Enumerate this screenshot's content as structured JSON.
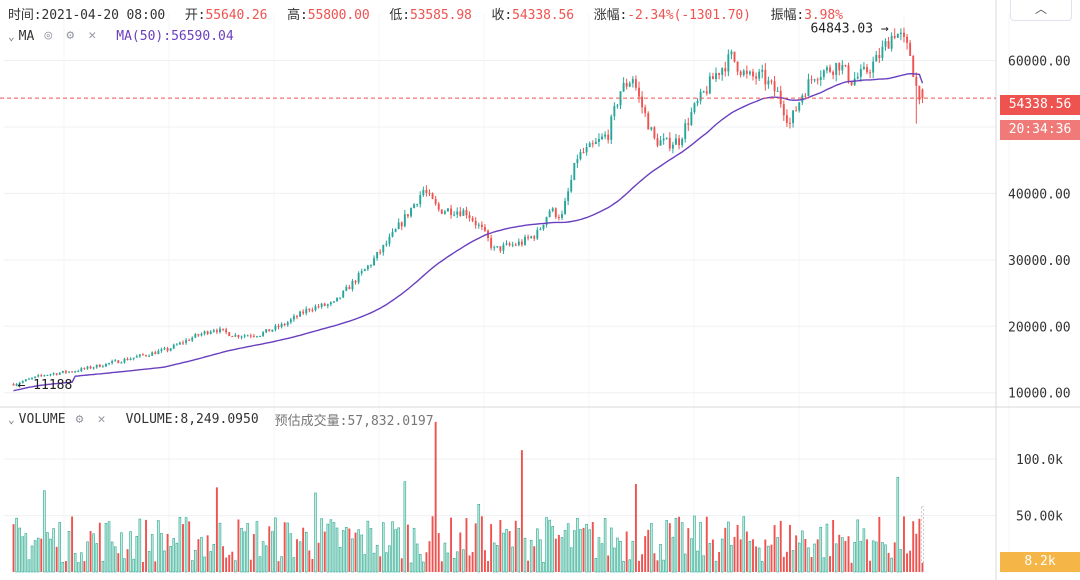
{
  "header": {
    "time_label": "时间:",
    "time_value": "2021-04-20 08:00",
    "open_label": "开:",
    "open_value": "55640.26",
    "high_label": "高:",
    "high_value": "55800.00",
    "low_label": "低:",
    "low_value": "53585.98",
    "close_label": "收:",
    "close_value": "54338.56",
    "change_label": "涨幅:",
    "change_value": "-2.34%(-1301.70)",
    "amplitude_label": "振幅:",
    "amplitude_value": "3.98%"
  },
  "price_legend": {
    "name": "MA",
    "ma_label": "MA(50):56590.04"
  },
  "volume_legend": {
    "name": "VOLUME",
    "value_label": "VOLUME:8,249.0950",
    "estimate_label": "预估成交量:57,832.0197"
  },
  "collapse_icon": "chevron-up-icon",
  "price_tags": {
    "last_price": "54338.56",
    "countdown": "20:34:36",
    "volume": "8.2k"
  },
  "annotations": {
    "high": "64843.03",
    "low": "11188"
  },
  "colors": {
    "up": "#26a69a",
    "up_fill": "#c8ecd5",
    "down": "#ef5350",
    "ma": "#6a3fbf",
    "volume_tag": "#f5b547"
  },
  "chart_data": [
    {
      "type": "candlestick",
      "title": "",
      "ylim": [
        8000,
        67000
      ],
      "yticks": [
        10000,
        20000,
        30000,
        40000,
        50000,
        60000
      ],
      "ytick_labels": [
        "10000.00",
        "20000.00",
        "30000.00",
        "40000.00",
        "50000.00",
        "60000.00"
      ],
      "last_price": 54338.56,
      "high": 64843.03,
      "low": 11188,
      "ma_period": 50,
      "ma_last": 56590.04,
      "grid": true,
      "anchors": [
        [
          0,
          11300
        ],
        [
          10,
          12700
        ],
        [
          20,
          13300
        ],
        [
          30,
          14300
        ],
        [
          40,
          15400
        ],
        [
          50,
          16500
        ],
        [
          58,
          18300
        ],
        [
          65,
          19600
        ],
        [
          72,
          18600
        ],
        [
          80,
          18800
        ],
        [
          88,
          20300
        ],
        [
          96,
          22700
        ],
        [
          104,
          23400
        ],
        [
          110,
          26500
        ],
        [
          116,
          29500
        ],
        [
          122,
          33000
        ],
        [
          128,
          37000
        ],
        [
          133,
          40500
        ],
        [
          138,
          37500
        ],
        [
          143,
          37500
        ],
        [
          147,
          37200
        ],
        [
          152,
          34500
        ],
        [
          156,
          31500
        ],
        [
          160,
          32000
        ],
        [
          165,
          32600
        ],
        [
          170,
          34000
        ],
        [
          174,
          37500
        ],
        [
          178,
          36500
        ],
        [
          183,
          45500
        ],
        [
          188,
          47000
        ],
        [
          193,
          49000
        ],
        [
          197,
          55500
        ],
        [
          201,
          57500
        ],
        [
          203,
          54300
        ],
        [
          208,
          48000
        ],
        [
          212,
          47500
        ],
        [
          216,
          48000
        ],
        [
          220,
          52000
        ],
        [
          224,
          55000
        ],
        [
          228,
          58000
        ],
        [
          233,
          60500
        ],
        [
          238,
          57500
        ],
        [
          243,
          57500
        ],
        [
          248,
          55000
        ],
        [
          252,
          50500
        ],
        [
          256,
          55000
        ],
        [
          260,
          58000
        ],
        [
          264,
          58500
        ],
        [
          268,
          59500
        ],
        [
          272,
          57000
        ],
        [
          276,
          58000
        ],
        [
          280,
          60000
        ],
        [
          284,
          63000
        ],
        [
          286,
          64300
        ],
        [
          288,
          63500
        ],
        [
          291,
          61000
        ],
        [
          293,
          56000
        ],
        [
          295,
          54338.56
        ]
      ],
      "volume": {
        "ylim": [
          0,
          140000
        ],
        "yticks": [
          50000,
          100000
        ],
        "ytick_labels": [
          "50.00k",
          "100.0k"
        ],
        "last_value": 8249.095,
        "estimated": 57832.0197,
        "spikes": [
          [
            10,
            72000
          ],
          [
            66,
            75000
          ],
          [
            98,
            70000
          ],
          [
            127,
            80000
          ],
          [
            137,
            133000
          ],
          [
            151,
            60000
          ],
          [
            165,
            108000
          ],
          [
            202,
            78000
          ],
          [
            287,
            84000
          ]
        ]
      }
    }
  ]
}
